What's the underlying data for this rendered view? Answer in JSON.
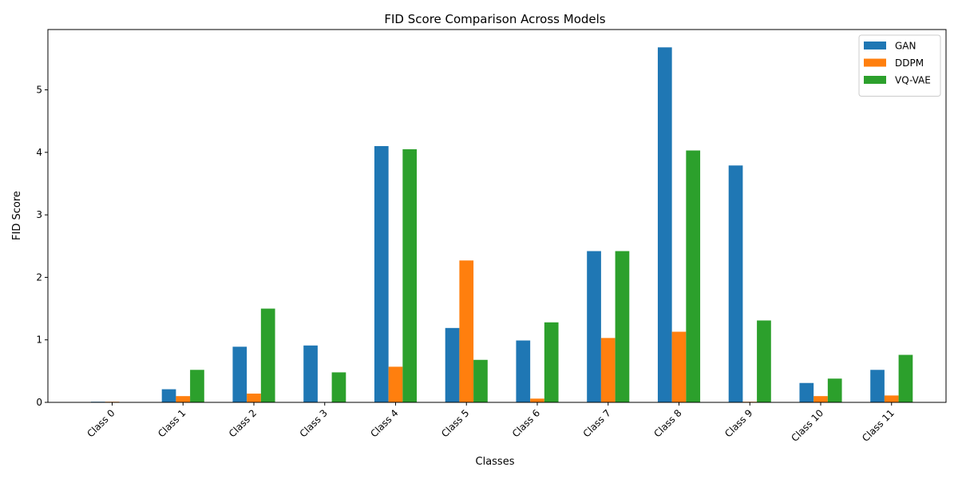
{
  "chart_data": {
    "type": "bar",
    "title": "FID Score Comparison Across Models",
    "xlabel": "Classes",
    "ylabel": "FID Score",
    "categories": [
      "Class 0",
      "Class 1",
      "Class 2",
      "Class 3",
      "Class 4",
      "Class 5",
      "Class 6",
      "Class 7",
      "Class 8",
      "Class 9",
      "Class 10",
      "Class 11"
    ],
    "series": [
      {
        "name": "GAN",
        "color": "#1f77b4",
        "values": [
          0.01,
          0.21,
          0.89,
          0.91,
          4.1,
          1.19,
          0.99,
          2.42,
          5.68,
          3.79,
          0.31,
          0.52
        ]
      },
      {
        "name": "DDPM",
        "color": "#ff7f0e",
        "values": [
          0.01,
          0.1,
          0.14,
          0.0,
          0.57,
          2.27,
          0.06,
          1.03,
          1.13,
          0.01,
          0.1,
          0.11
        ]
      },
      {
        "name": "VQ-VAE",
        "color": "#2ca02c",
        "values": [
          0.0,
          0.52,
          1.5,
          0.48,
          4.05,
          0.68,
          1.28,
          2.42,
          4.03,
          1.31,
          0.38,
          0.76
        ]
      }
    ],
    "ylim": [
      0,
      5.965
    ],
    "yticks": [
      0,
      1,
      2,
      3,
      4,
      5
    ],
    "xtick_rotation": 45,
    "legend_position": "top-right",
    "grid": false
  }
}
